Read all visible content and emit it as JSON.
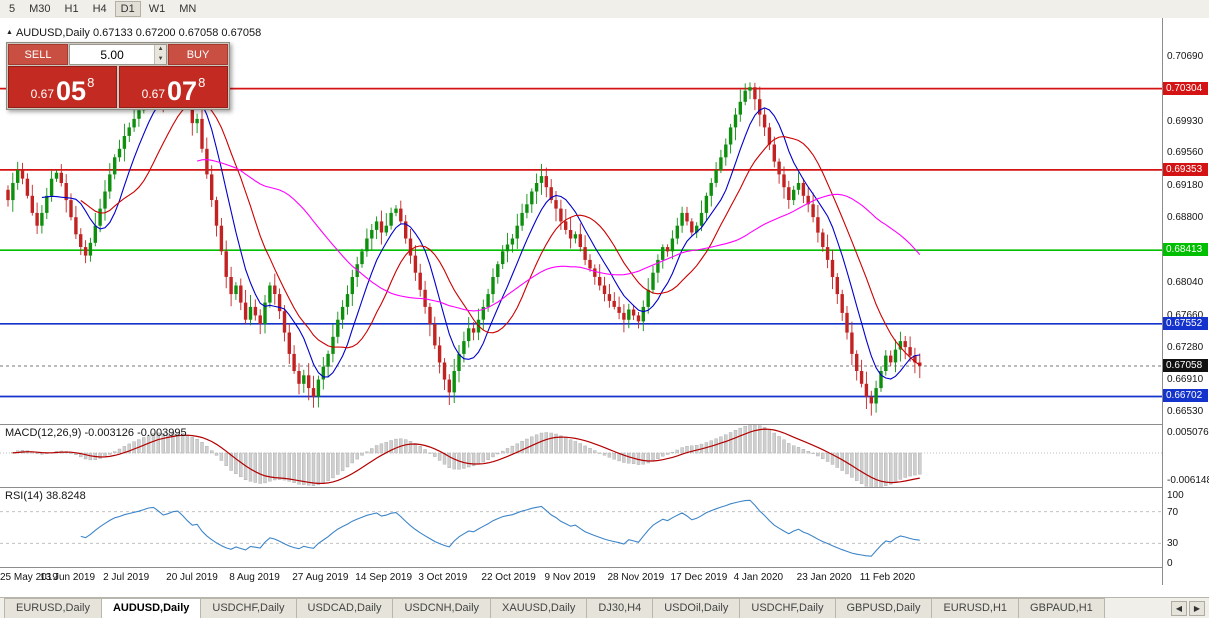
{
  "toolbar": {
    "timeframes": [
      "5",
      "M30",
      "H1",
      "H4",
      "D1",
      "W1",
      "MN"
    ],
    "active": "D1"
  },
  "chart": {
    "title": "AUDUSD,Daily",
    "ohlc_text": "0.67133 0.67200 0.67058 0.67058",
    "current_label": "0.67058"
  },
  "trade": {
    "sell_label": "SELL",
    "buy_label": "BUY",
    "volume": "5.00",
    "sell_small": "0.67",
    "sell_big": "05",
    "sell_sup": "8",
    "buy_small": "0.67",
    "buy_big": "07",
    "buy_sup": "8"
  },
  "indicators": {
    "macd": {
      "text": "MACD(12,26,9) -0.003126 -0.003995",
      "axis_top": "0.005076",
      "axis_bottom": "-0.006148"
    },
    "rsi": {
      "text": "RSI(14) 38.8248",
      "levels": [
        {
          "v": 100,
          "label": "100"
        },
        {
          "v": 70,
          "label": "70"
        },
        {
          "v": 30,
          "label": "30"
        },
        {
          "v": 0,
          "label": "0"
        }
      ]
    }
  },
  "tabs": {
    "items": [
      "EURUSD,Daily",
      "AUDUSD,Daily",
      "USDCHF,Daily",
      "USDCAD,Daily",
      "USDCNH,Daily",
      "XAUUSD,Daily",
      "DJ30,H4",
      "USDOil,Daily",
      "USDCHF,Daily",
      "GBPUSD,Daily",
      "EURUSD,H1",
      "GBPAUD,H1"
    ],
    "active_index": 1
  },
  "chart_data": {
    "type": "candlestick",
    "symbol": "AUDUSD",
    "timeframe": "Daily",
    "price_range": {
      "top": 0.7113,
      "bottom": 0.6638
    },
    "closes": [
      0.69,
      0.692,
      0.6935,
      0.6925,
      0.6905,
      0.6885,
      0.687,
      0.6885,
      0.6905,
      0.6925,
      0.6932,
      0.692,
      0.69,
      0.688,
      0.686,
      0.6845,
      0.6835,
      0.685,
      0.687,
      0.689,
      0.691,
      0.693,
      0.695,
      0.696,
      0.6975,
      0.6985,
      0.6995,
      0.7005,
      0.702,
      0.7035,
      0.7042,
      0.703,
      0.7015,
      0.7025,
      0.704,
      0.7045,
      0.703,
      0.701,
      0.699,
      0.6995,
      0.696,
      0.693,
      0.69,
      0.687,
      0.684,
      0.681,
      0.679,
      0.68,
      0.678,
      0.676,
      0.6775,
      0.6765,
      0.6755,
      0.678,
      0.68,
      0.679,
      0.677,
      0.6745,
      0.672,
      0.67,
      0.6685,
      0.6695,
      0.668,
      0.667,
      0.669,
      0.6705,
      0.672,
      0.674,
      0.676,
      0.6775,
      0.679,
      0.681,
      0.6825,
      0.684,
      0.6855,
      0.6865,
      0.6875,
      0.6862,
      0.687,
      0.6885,
      0.689,
      0.6875,
      0.6855,
      0.6835,
      0.6815,
      0.6795,
      0.6775,
      0.6755,
      0.673,
      0.671,
      0.669,
      0.6675,
      0.67,
      0.672,
      0.6735,
      0.675,
      0.6745,
      0.676,
      0.6775,
      0.679,
      0.681,
      0.6825,
      0.684,
      0.6848,
      0.6855,
      0.687,
      0.6885,
      0.6895,
      0.691,
      0.692,
      0.6928,
      0.6915,
      0.69,
      0.689,
      0.6875,
      0.6865,
      0.6855,
      0.686,
      0.6845,
      0.683,
      0.682,
      0.681,
      0.68,
      0.679,
      0.6782,
      0.6775,
      0.6768,
      0.676,
      0.6772,
      0.6765,
      0.6758,
      0.6775,
      0.6795,
      0.6815,
      0.683,
      0.6845,
      0.684,
      0.6855,
      0.687,
      0.6885,
      0.6875,
      0.6862,
      0.687,
      0.6885,
      0.6905,
      0.692,
      0.6935,
      0.695,
      0.6965,
      0.6985,
      0.7,
      0.7015,
      0.7028,
      0.7032,
      0.7018,
      0.7,
      0.6985,
      0.6965,
      0.6945,
      0.693,
      0.6915,
      0.69,
      0.6912,
      0.692,
      0.6905,
      0.6895,
      0.688,
      0.6862,
      0.6845,
      0.683,
      0.681,
      0.679,
      0.6768,
      0.6745,
      0.672,
      0.67,
      0.6685,
      0.667,
      0.6662,
      0.668,
      0.67,
      0.6718,
      0.671,
      0.6725,
      0.6735,
      0.6728,
      0.6718,
      0.671,
      0.6706
    ],
    "mas": [
      {
        "period": 8,
        "color": "#0000cc"
      },
      {
        "period": 16,
        "color": "#cc0000"
      },
      {
        "period": 40,
        "color": "#ff00ff"
      }
    ],
    "hlines": [
      {
        "price": 0.70304,
        "label": "0.70304",
        "color": "#d41414"
      },
      {
        "price": 0.69353,
        "label": "0.69353",
        "color": "#d41414"
      },
      {
        "price": 0.68413,
        "label": "0.68413",
        "color": "#00bf00"
      },
      {
        "price": 0.67552,
        "label": "0.67552",
        "color": "#1433cc"
      },
      {
        "price": 0.66702,
        "label": "0.66702",
        "color": "#1433cc"
      }
    ],
    "current_price": 0.67058,
    "colors": {
      "up": "#0e8f0e",
      "down": "#c32222",
      "macd_hist": "#cfcfcf",
      "macd_signal": "#b30000",
      "rsi_line": "#3d85c8"
    },
    "axis_ticks": [
      "0.70690",
      "0.69930",
      "0.69560",
      "0.69180",
      "0.68800",
      "0.68040",
      "0.67660",
      "0.67280",
      "0.66910",
      "0.66530"
    ],
    "macd_axis": {
      "max": 0.005076,
      "min": -0.006148
    },
    "macd_params": {
      "fast": 12,
      "slow": 26,
      "signal": 9
    },
    "rsi_period": 14,
    "rsi_levels_dashed": [
      70,
      30
    ],
    "date_labels": [
      {
        "label": "25 May 2019",
        "i": 0
      },
      {
        "label": "13 Jun 2019",
        "i": 13
      },
      {
        "label": "2 Jul 2019",
        "i": 26
      },
      {
        "label": "20 Jul 2019",
        "i": 39
      },
      {
        "label": "8 Aug 2019",
        "i": 52
      },
      {
        "label": "27 Aug 2019",
        "i": 65
      },
      {
        "label": "14 Sep 2019",
        "i": 78
      },
      {
        "label": "3 Oct 2019",
        "i": 91
      },
      {
        "label": "22 Oct 2019",
        "i": 104
      },
      {
        "label": "9 Nov 2019",
        "i": 117
      },
      {
        "label": "28 Nov 2019",
        "i": 130
      },
      {
        "label": "17 Dec 2019",
        "i": 143
      },
      {
        "label": "4 Jan 2020",
        "i": 156
      },
      {
        "label": "23 Jan 2020",
        "i": 169
      },
      {
        "label": "11 Feb 2020",
        "i": 182
      }
    ]
  }
}
